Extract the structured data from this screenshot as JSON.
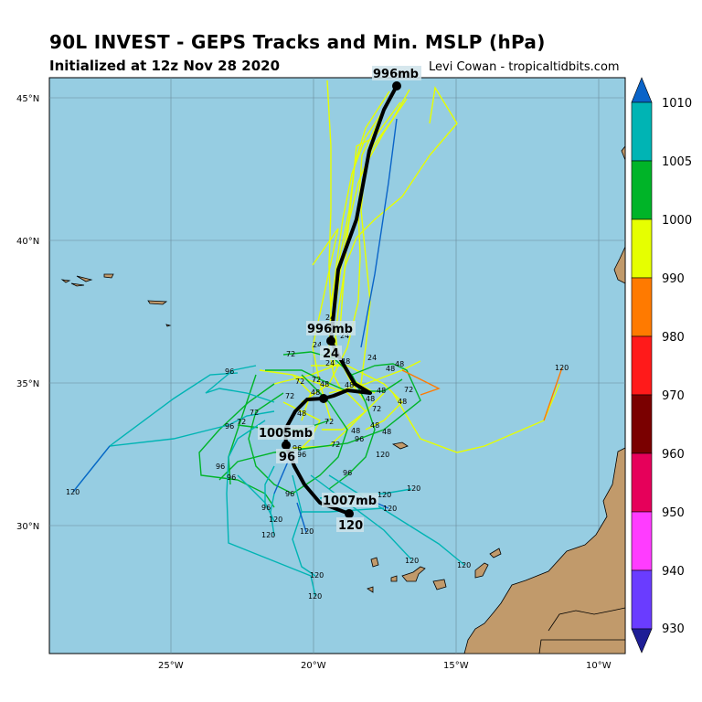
{
  "title": "90L INVEST - GEPS Tracks and Min. MSLP (hPa)",
  "subtitle": "Initialized at 12z Nov 28 2020",
  "credit": "Levi Cowan - tropicaltidbits.com",
  "axes": {
    "lat_labels": [
      "45°N",
      "40°N",
      "35°N",
      "30°N"
    ],
    "lon_labels": [
      "25°W",
      "20°W",
      "15°W",
      "10°W"
    ]
  },
  "colorbar": {
    "ticks": [
      "1010",
      "1005",
      "1000",
      "990",
      "980",
      "970",
      "960",
      "950",
      "940",
      "930"
    ],
    "colors": [
      "#1e1e96",
      "#6a3cff",
      "#ff3cff",
      "#e6005a",
      "#7a0000",
      "#ff1a1a",
      "#ff7a00",
      "#e6ff00",
      "#00b428",
      "#00b4b4",
      "#0a64c8"
    ]
  },
  "mean_track_labels": [
    {
      "text": "996mb",
      "hour": ""
    },
    {
      "text": "996mb",
      "hour": "24"
    },
    {
      "text": "1005mb",
      "hour": "96"
    },
    {
      "text": "1007mb",
      "hour": "120"
    }
  ],
  "member_hour_labels": [
    "24",
    "48",
    "72",
    "96",
    "120"
  ],
  "colors": {
    "ocean": "#96cde2",
    "land": "#c19a6b",
    "mean_track": "#000000"
  }
}
